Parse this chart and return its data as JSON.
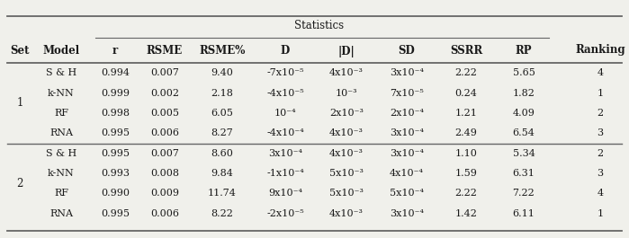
{
  "title": "Statistics",
  "col_headers": [
    "r",
    "RSME",
    "RSME%",
    "D",
    "|D|",
    "SD",
    "SSRR",
    "RP"
  ],
  "rows": [
    {
      "set_lbl": "",
      "model": "S & H",
      "r": "0.994",
      "rsme": "0.007",
      "rsme_pct": "9.40",
      "D": "-7x10⁻⁵",
      "absD": "4x10⁻³",
      "SD": "3x10⁻⁴",
      "SSRR": "2.22",
      "RP": "5.65",
      "ranking": "4"
    },
    {
      "set_lbl": "",
      "model": "k-NN",
      "r": "0.999",
      "rsme": "0.002",
      "rsme_pct": "2.18",
      "D": "-4x10⁻⁵",
      "absD": "10⁻³",
      "SD": "7x10⁻⁵",
      "SSRR": "0.24",
      "RP": "1.82",
      "ranking": "1"
    },
    {
      "set_lbl": "",
      "model": "RF",
      "r": "0.998",
      "rsme": "0.005",
      "rsme_pct": "6.05",
      "D": "10⁻⁴",
      "absD": "2x10⁻³",
      "SD": "2x10⁻⁴",
      "SSRR": "1.21",
      "RP": "4.09",
      "ranking": "2"
    },
    {
      "set_lbl": "",
      "model": "RNA",
      "r": "0.995",
      "rsme": "0.006",
      "rsme_pct": "8.27",
      "D": "-4x10⁻⁴",
      "absD": "4x10⁻³",
      "SD": "3x10⁻⁴",
      "SSRR": "2.49",
      "RP": "6.54",
      "ranking": "3"
    },
    {
      "set_lbl": "",
      "model": "S & H",
      "r": "0.995",
      "rsme": "0.007",
      "rsme_pct": "8.60",
      "D": "3x10⁻⁴",
      "absD": "4x10⁻³",
      "SD": "3x10⁻⁴",
      "SSRR": "1.10",
      "RP": "5.34",
      "ranking": "2"
    },
    {
      "set_lbl": "",
      "model": "k-NN",
      "r": "0.993",
      "rsme": "0.008",
      "rsme_pct": "9.84",
      "D": "-1x10⁻⁴",
      "absD": "5x10⁻³",
      "SD": "4x10⁻⁴",
      "SSRR": "1.59",
      "RP": "6.31",
      "ranking": "3"
    },
    {
      "set_lbl": "",
      "model": "RF",
      "r": "0.990",
      "rsme": "0.009",
      "rsme_pct": "11.74",
      "D": "9x10⁻⁴",
      "absD": "5x10⁻³",
      "SD": "5x10⁻⁴",
      "SSRR": "2.22",
      "RP": "7.22",
      "ranking": "4"
    },
    {
      "set_lbl": "",
      "model": "RNA",
      "r": "0.995",
      "rsme": "0.006",
      "rsme_pct": "8.22",
      "D": "-2x10⁻⁵",
      "absD": "4x10⁻³",
      "SD": "3x10⁻⁴",
      "SSRR": "1.42",
      "RP": "6.11",
      "ranking": "1"
    }
  ],
  "bg_color": "#f0f0eb",
  "text_color": "#1a1a1a",
  "line_color": "#666666",
  "set_labels": [
    [
      "1",
      0,
      3
    ],
    [
      "2",
      4,
      7
    ]
  ]
}
